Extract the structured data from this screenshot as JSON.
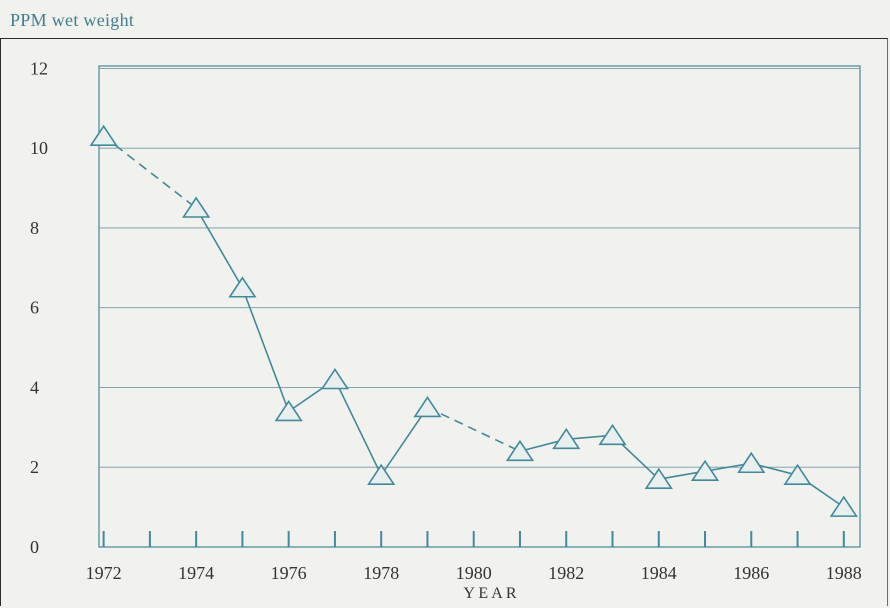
{
  "chart_data": {
    "type": "line",
    "ylabel": "PPM wet weight",
    "xlabel": "Y E A R",
    "ylim": [
      0,
      12
    ],
    "yticks": [
      "0",
      "2",
      "4",
      "6",
      "8",
      "10",
      "12"
    ],
    "xtick_labels": [
      "1972",
      "1974",
      "1976",
      "1978",
      "1980",
      "1982",
      "1984",
      "1986",
      "1988"
    ],
    "grid": true,
    "series": [
      {
        "x": [
          1972,
          1974,
          1975,
          1976,
          1977,
          1978,
          1979,
          1981,
          1982,
          1983,
          1984,
          1985,
          1986,
          1987,
          1988
        ],
        "values": [
          10.3,
          8.5,
          6.5,
          3.4,
          4.2,
          1.8,
          3.5,
          2.4,
          2.7,
          2.8,
          1.7,
          1.9,
          2.1,
          1.8,
          1.0
        ],
        "marker": "triangle",
        "color": "#3f8a9c",
        "dashed_segments": [
          [
            1972,
            1974
          ],
          [
            1979,
            1981
          ]
        ]
      }
    ]
  }
}
